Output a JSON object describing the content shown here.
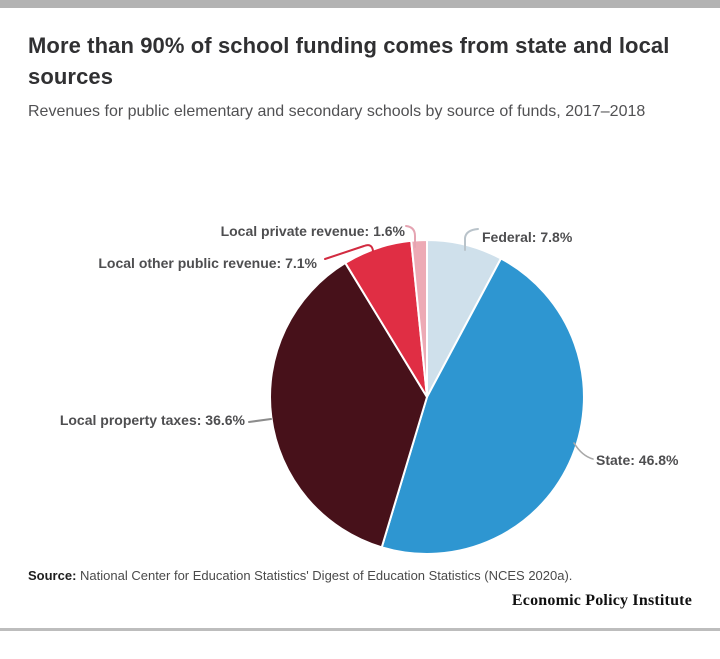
{
  "page": {
    "title": "More than 90% of school funding comes from state and local sources",
    "subtitle": "Revenues for public elementary and secondary schools by source of funds, 2017–2018",
    "source_label": "Source:",
    "source_text": "National Center for Education Statistics' Digest of Education Statistics (NCES 2020a).",
    "brand": "Economic Policy Institute"
  },
  "chart_data": {
    "type": "pie",
    "title": "More than 90% of school funding comes from state and local sources",
    "subtitle": "Revenues for public elementary and secondary schools by source of funds, 2017–2018",
    "start_angle_deg": 0,
    "direction": "clockwise",
    "label_style": "callout",
    "legend": "none",
    "stroke": "#ffffff",
    "slices": [
      {
        "label": "Federal",
        "value": 7.8,
        "display": "Federal: 7.8%",
        "color": "#cfe0eb"
      },
      {
        "label": "State",
        "value": 46.8,
        "display": "State: 46.8%",
        "color": "#2e96d1"
      },
      {
        "label": "Local property taxes",
        "value": 36.6,
        "display": "Local property taxes: 36.6%",
        "color": "#47111a"
      },
      {
        "label": "Local other public revenue",
        "value": 7.1,
        "display": "Local other public revenue: 7.1%",
        "color": "#e02e44"
      },
      {
        "label": "Local private revenue",
        "value": 1.6,
        "display": "Local private revenue: 1.6%",
        "color": "#edaab5"
      }
    ]
  },
  "callouts": {
    "federal": "#b9c3ca",
    "state": "#a8a8a8",
    "property": "#8c8c8c",
    "other": "#d22b40",
    "private": "#e5a4b2"
  },
  "colors": {
    "top_bar": "#b3b3b3",
    "bottom_rule": "#bdbdbd",
    "title_text": "#303032",
    "subtitle_text": "#515153",
    "label_text": "#4e4e50",
    "background": "#ffffff"
  }
}
